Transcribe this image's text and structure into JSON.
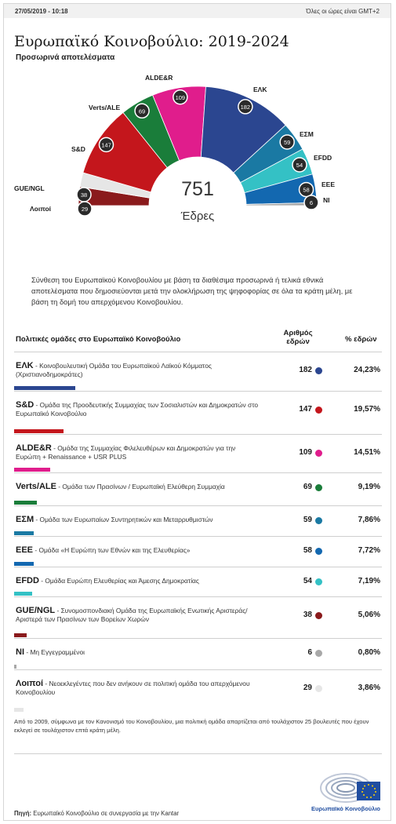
{
  "header": {
    "date": "27/05/2019 - 10:18",
    "timezone_note": "Όλες οι ώρες είναι GMT+2"
  },
  "title": "Ευρωπαϊκό Κοινοβούλιο: 2019-2024",
  "subtitle": "Προσωρινά αποτελέσματα",
  "chart_data": {
    "type": "pie",
    "total_seats": 751,
    "total_label": "751",
    "total_caption": "Έδρες",
    "groups": [
      {
        "key": "GUE/NGL",
        "label": "GUE/NGL",
        "seats": 38,
        "seats_text": "38",
        "pct": "5,06%",
        "color": "#8a1a1c"
      },
      {
        "key": "Λοιποί",
        "label": "Λοιποί",
        "seats": 29,
        "seats_text": "29",
        "pct": "3,86%",
        "color": "#e6e6e6"
      },
      {
        "key": "S&D",
        "label": "S&D",
        "seats": 147,
        "seats_text": "147",
        "pct": "19,57%",
        "color": "#c4161c"
      },
      {
        "key": "Verts/ALE",
        "label": "Verts/ALE",
        "seats": 69,
        "seats_text": "69",
        "pct": "9,19%",
        "color": "#1a7d3a"
      },
      {
        "key": "ALDE&R",
        "label": "ALDE&R",
        "seats": 109,
        "seats_text": "109",
        "pct": "14,51%",
        "color": "#e01d8c"
      },
      {
        "key": "ΕΛΚ",
        "label": "ΕΛΚ",
        "seats": 182,
        "seats_text": "182",
        "pct": "24,23%",
        "color": "#2b4690"
      },
      {
        "key": "ΕΣΜ",
        "label": "ΕΣΜ",
        "seats": 59,
        "seats_text": "59",
        "pct": "7,86%",
        "color": "#1a79a3"
      },
      {
        "key": "EFDD",
        "label": "EFDD",
        "seats": 54,
        "seats_text": "54",
        "pct": "7,19%",
        "color": "#34c1c5"
      },
      {
        "key": "ΕΕΕ",
        "label": "ΕΕΕ",
        "seats": 58,
        "seats_text": "58",
        "pct": "7,72%",
        "color": "#1368b0"
      },
      {
        "key": "NI",
        "label": "NI",
        "seats": 6,
        "seats_text": "6",
        "pct": "0,80%",
        "color": "#a8a8a8"
      }
    ]
  },
  "description": "Σύνθεση του Ευρωπαϊκού Κοινοβουλίου με βάση τα διαθέσιμα προσωρινά ή τελικά εθνικά αποτελέσματα που δημοσιεύονται μετά την ολοκλήρωση της ψηφοφορίας σε όλα τα κράτη μέλη, με βάση τη δομή του απερχόμενου Κοινοβουλίου.",
  "table": {
    "col_group": "Πολιτικές ομάδες στο Ευρωπαϊκό Κοινοβούλιο",
    "col_seats_line1": "Αριθμός",
    "col_seats_line2": "εδρών",
    "col_pct": "% εδρών",
    "rows": [
      {
        "abbr": "ΕΛΚ",
        "desc": " - Κοινοβουλευτική Ομάδα του Ευρωπαϊκού Λαϊκού Κόμματος (Χριστιανοδημοκράτες)",
        "seats": "182",
        "pct": "24,23%",
        "color": "#2b4690",
        "share": 0.2423
      },
      {
        "abbr": "S&D",
        "desc": " - Ομάδα της Προοδευτικής Συμμαχίας των Σοσιαλιστών και Δημοκρατών στο Ευρωπαϊκό Κοινοβούλιο",
        "seats": "147",
        "pct": "19,57%",
        "color": "#c4161c",
        "share": 0.1957
      },
      {
        "abbr": "ALDE&R",
        "desc": " - Ομάδα της Συμμαχίας Φιλελευθέρων και Δημοκρατών για την Ευρώπη + Renaissance + USR PLUS",
        "seats": "109",
        "pct": "14,51%",
        "color": "#e01d8c",
        "share": 0.1451
      },
      {
        "abbr": "Verts/ALE",
        "desc": " - Ομάδα των Πρασίνων / Ευρωπαϊκή Ελεύθερη Συμμαχία",
        "seats": "69",
        "pct": "9,19%",
        "color": "#1a7d3a",
        "share": 0.0919
      },
      {
        "abbr": "ΕΣΜ",
        "desc": " - Ομάδα των Ευρωπαίων Συντηρητικών και Μεταρρυθμιστών",
        "seats": "59",
        "pct": "7,86%",
        "color": "#1a79a3",
        "share": 0.0786
      },
      {
        "abbr": "ΕΕΕ",
        "desc": " - Ομάδα «Η Ευρώπη των Εθνών και της Ελευθερίας»",
        "seats": "58",
        "pct": "7,72%",
        "color": "#1368b0",
        "share": 0.0772
      },
      {
        "abbr": "EFDD",
        "desc": " - Ομάδα Ευρώπη Ελευθερίας και Άμεσης Δημοκρατίας",
        "seats": "54",
        "pct": "7,19%",
        "color": "#34c1c5",
        "share": 0.0719
      },
      {
        "abbr": "GUE/NGL",
        "desc": " - Συνομοσπονδιακή Ομάδα της Ευρωπαϊκής Ενωτικής Αριστεράς/Αριστερά των Πρασίνων των Βορείων Χωρών",
        "seats": "38",
        "pct": "5,06%",
        "color": "#8a1a1c",
        "share": 0.0506
      },
      {
        "abbr": "NI",
        "desc": " - Μη Εγγεγραμμένοι",
        "seats": "6",
        "pct": "0,80%",
        "color": "#a8a8a8",
        "share": 0.008
      },
      {
        "abbr": "Λοιποί",
        "desc": " - Νεοεκλεγέντες που δεν ανήκουν σε πολιτική ομάδα του απερχόμενου Κοινοβουλίου",
        "seats": "29",
        "pct": "3,86%",
        "color": "#e6e6e6",
        "share": 0.0386
      }
    ]
  },
  "footnote": "Από το 2009, σύμφωνα με τον Κανονισμό του Κοινοβουλίου, μια πολιτική ομάδα απαρτίζεται από τουλάχιστον 25 βουλευτές που έχουν εκλεγεί σε τουλάχιστον επτά κράτη μέλη.",
  "source_label": "Πηγή:",
  "source_text": " Ευρωπαϊκό Κοινοβούλιο σε συνεργασία με την Kantar",
  "logo_text": "Ευρωπαϊκό Κοινοβούλιο"
}
